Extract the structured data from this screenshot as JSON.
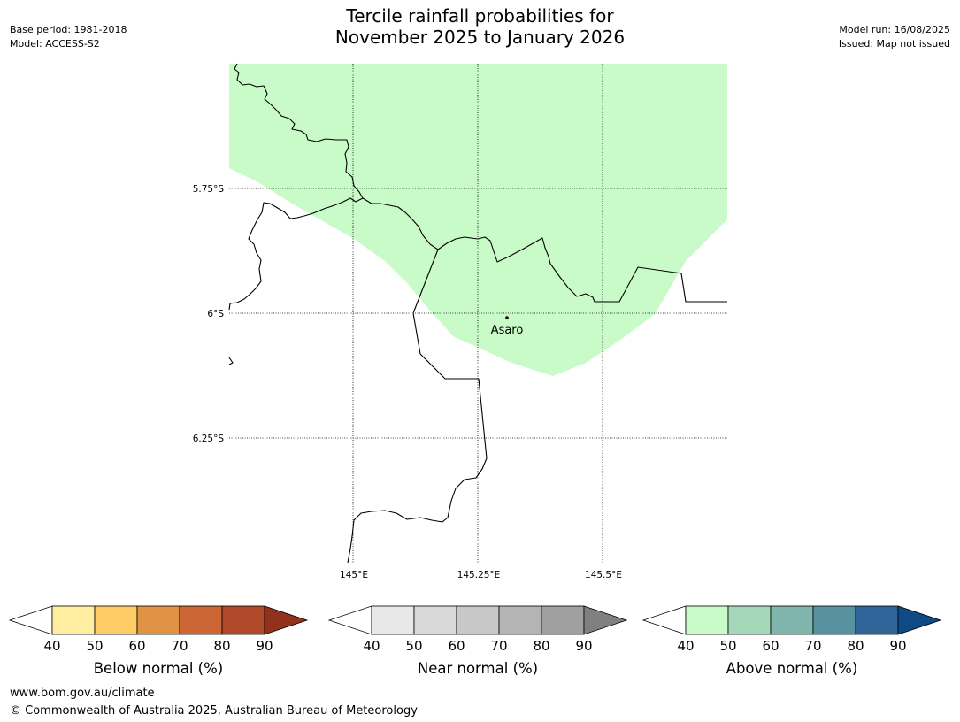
{
  "title": {
    "line1": "Tercile rainfall probabilities for",
    "line2": "November 2025 to January 2026"
  },
  "meta_left": {
    "base_period": "Base period: 1981-2018",
    "model": "Model: ACCESS-S2"
  },
  "meta_right": {
    "model_run": "Model run: 16/08/2025",
    "issued": "Issued: Map not issued"
  },
  "map": {
    "lat_labels": [
      "5.75°S",
      "6°S",
      "6.25°S"
    ],
    "lon_labels": [
      "145°E",
      "145.25°E",
      "145.5°E"
    ],
    "places": [
      {
        "name": "Asaro"
      }
    ],
    "shaded_category": "Above normal 40-50%",
    "shade_color": "#c9fbc9"
  },
  "colorbars": [
    {
      "label": "Below normal (%)",
      "ticks": [
        "40",
        "50",
        "60",
        "70",
        "80",
        "90"
      ],
      "colors": [
        "#ffffff",
        "#ffeda0",
        "#fecb65",
        "#e09344",
        "#cd6635",
        "#b04a2a",
        "#92321c"
      ]
    },
    {
      "label": "Near normal (%)",
      "ticks": [
        "40",
        "50",
        "60",
        "70",
        "80",
        "90"
      ],
      "colors": [
        "#ffffff",
        "#e8e8e8",
        "#d8d8d8",
        "#c8c8c8",
        "#b4b4b4",
        "#a0a0a0",
        "#808080"
      ]
    },
    {
      "label": "Above normal (%)",
      "ticks": [
        "40",
        "50",
        "60",
        "70",
        "80",
        "90"
      ],
      "colors": [
        "#ffffff",
        "#c9fbc9",
        "#a5d7b9",
        "#80b5ad",
        "#5892a0",
        "#2f6498",
        "#0f4a85"
      ]
    }
  ],
  "footer": {
    "url": "www.bom.gov.au/climate",
    "copyright": "© Commonwealth of Australia 2025, Australian Bureau of Meteorology"
  }
}
